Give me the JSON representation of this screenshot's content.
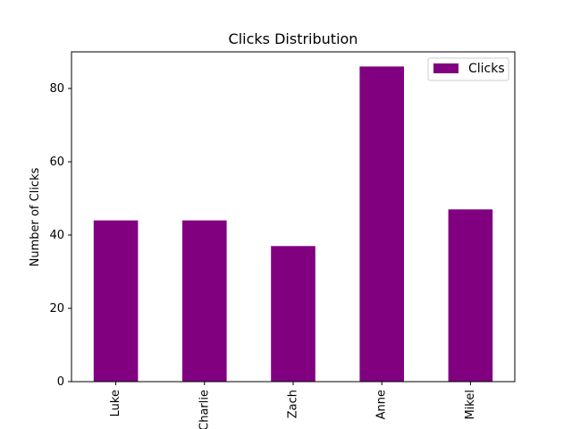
{
  "chart_data": {
    "type": "bar",
    "title": "Clicks Distribution",
    "xlabel": "",
    "ylabel": "Number of Clicks",
    "categories": [
      "Luke",
      "Charlie",
      "Zach",
      "Anne",
      "Mikel"
    ],
    "series": [
      {
        "name": "Clicks",
        "values": [
          44,
          44,
          37,
          86,
          47
        ],
        "color": "#800080"
      }
    ],
    "ylim": [
      0,
      90
    ],
    "yticks": [
      0,
      20,
      40,
      60,
      80
    ],
    "grid": false,
    "legend_position": "top-right",
    "xtick_rotation": "vertical"
  }
}
